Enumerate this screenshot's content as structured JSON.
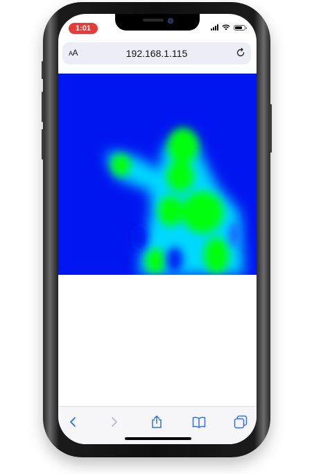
{
  "status_bar": {
    "time": "1:01",
    "icons": [
      "cellular-signal-icon",
      "wifi-icon",
      "battery-icon"
    ]
  },
  "browser": {
    "text_size_label": "AA",
    "url": "192.168.1.115",
    "reload_icon": "reload-icon"
  },
  "content": {
    "thermal_colors": {
      "background": "#0016f0",
      "cool": "#00d8ff",
      "warm": "#00ff10"
    }
  },
  "toolbar": {
    "items": [
      "back-icon",
      "forward-icon",
      "share-icon",
      "bookmarks-icon",
      "tabs-icon"
    ],
    "accent": "#2f6df5",
    "disabled": "#b4bac6"
  }
}
